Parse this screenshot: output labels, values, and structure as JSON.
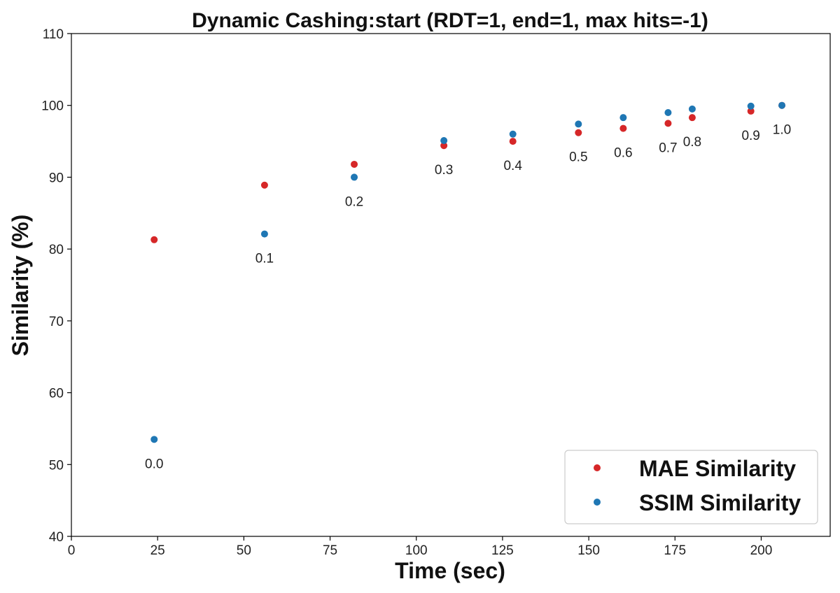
{
  "chart_data": {
    "type": "scatter",
    "title": "Dynamic Cashing:start (RDT=1, end=1, max hits=-1)",
    "xlabel": "Time (sec)",
    "ylabel": "Similarity (%)",
    "xlim": [
      0,
      220
    ],
    "ylim": [
      40,
      110
    ],
    "xticks": [
      0,
      25,
      50,
      75,
      100,
      125,
      150,
      175,
      200
    ],
    "yticks": [
      40,
      50,
      60,
      70,
      80,
      90,
      100,
      110
    ],
    "grid": false,
    "legend_position": "bottom-right",
    "series": [
      {
        "name": "MAE Similarity",
        "color": "#d62728",
        "x": [
          24,
          56,
          82,
          108,
          128,
          147,
          160,
          173,
          180,
          197,
          206
        ],
        "y": [
          81.3,
          88.9,
          91.8,
          94.4,
          95.0,
          96.2,
          96.8,
          97.5,
          98.3,
          99.2,
          100.0
        ]
      },
      {
        "name": "SSIM Similarity",
        "color": "#1f77b4",
        "x": [
          24,
          56,
          82,
          108,
          128,
          147,
          160,
          173,
          180,
          197,
          206
        ],
        "y": [
          53.5,
          82.1,
          90.0,
          95.1,
          96.0,
          97.4,
          98.3,
          99.0,
          99.5,
          99.9,
          100.0
        ]
      }
    ],
    "annotations": [
      {
        "text": "0.0",
        "x": 24,
        "y": 53.5
      },
      {
        "text": "0.1",
        "x": 56,
        "y": 82.1
      },
      {
        "text": "0.2",
        "x": 82,
        "y": 90.0
      },
      {
        "text": "0.3",
        "x": 108,
        "y": 94.4
      },
      {
        "text": "0.4",
        "x": 128,
        "y": 95.0
      },
      {
        "text": "0.5",
        "x": 147,
        "y": 96.2
      },
      {
        "text": "0.6",
        "x": 160,
        "y": 96.8
      },
      {
        "text": "0.7",
        "x": 173,
        "y": 97.5
      },
      {
        "text": "0.8",
        "x": 180,
        "y": 98.3
      },
      {
        "text": "0.9",
        "x": 197,
        "y": 99.2
      },
      {
        "text": "1.0",
        "x": 206,
        "y": 100.0
      }
    ]
  }
}
